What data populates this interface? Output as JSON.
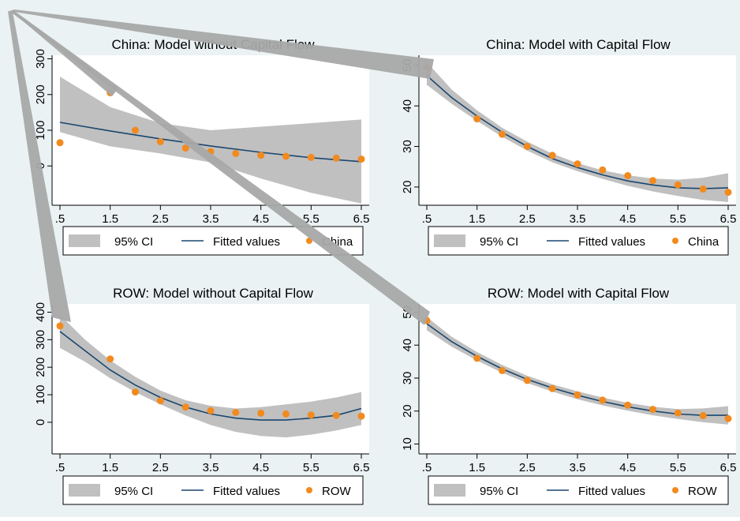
{
  "colors": {
    "page_background": "#ffffff",
    "graph_background": "#eaf2f3",
    "plot_background": "#ffffff",
    "ci_band": "#c0c0c0",
    "fitted_line": "#1a476f",
    "points": "#f28a1e",
    "artifact": "#a8a8a8"
  },
  "legend_labels": {
    "ci": "95% CI",
    "fitted": "Fitted values"
  },
  "chart_data": [
    {
      "type": "scatter",
      "title": "China: Model without Capital Flow",
      "x_ticks": [
        0.5,
        1.5,
        2.5,
        3.5,
        4.5,
        5.5,
        6.5
      ],
      "x_tick_labels": [
        ".5",
        "1.5",
        "2.5",
        "3.5",
        "4.5",
        "5.5",
        "6.5"
      ],
      "xlim": [
        0.5,
        6.5
      ],
      "y_ticks": [
        0,
        100,
        200,
        300
      ],
      "y_tick_labels": [
        "0",
        "100",
        "200",
        "300"
      ],
      "ylim": [
        -110,
        310
      ],
      "grid": false,
      "legend_position": "bottom",
      "series": [
        {
          "name": "China",
          "kind": "points",
          "x": [
            0.5,
            1.5,
            2,
            2.5,
            3,
            3.5,
            4,
            4.5,
            5,
            5.5,
            6,
            6.5
          ],
          "y": [
            65,
            205,
            100,
            68,
            50,
            40,
            35,
            30,
            27,
            24,
            22,
            19
          ]
        },
        {
          "name": "Fitted values",
          "kind": "line",
          "x": [
            0.5,
            1.5,
            2.5,
            3.5,
            4.5,
            5.5,
            6.5
          ],
          "y": [
            122,
            98,
            76,
            56,
            38,
            23,
            12
          ]
        },
        {
          "name": "95% CI",
          "kind": "band",
          "x": [
            0.5,
            1.5,
            2.5,
            3.5,
            4.5,
            5.5,
            6.5
          ],
          "lower": [
            95,
            55,
            35,
            10,
            -35,
            -75,
            -105
          ],
          "upper": [
            250,
            165,
            120,
            100,
            110,
            120,
            130
          ]
        }
      ]
    },
    {
      "type": "scatter",
      "title": "China: Model with Capital Flow",
      "x_ticks": [
        0.5,
        1.5,
        2.5,
        3.5,
        4.5,
        5.5,
        6.5
      ],
      "x_tick_labels": [
        ".5",
        "1.5",
        "2.5",
        "3.5",
        "4.5",
        "5.5",
        "6.5"
      ],
      "xlim": [
        0.5,
        6.5
      ],
      "y_ticks": [
        20,
        30,
        40,
        50
      ],
      "y_tick_labels": [
        "20",
        "30",
        "40",
        "50"
      ],
      "ylim": [
        15.5,
        52.5
      ],
      "grid": false,
      "legend_position": "bottom",
      "series": [
        {
          "name": "China",
          "kind": "points",
          "x": [
            0.5,
            1.5,
            2,
            2.5,
            3,
            3.5,
            4,
            4.5,
            5,
            5.5,
            6,
            6.5
          ],
          "y": [
            49.5,
            36.8,
            33,
            30,
            27.8,
            25.7,
            24.2,
            22.8,
            21.6,
            20.5,
            19.5,
            18.7
          ]
        },
        {
          "name": "Fitted values",
          "kind": "line",
          "x": [
            0.5,
            1,
            1.5,
            2,
            2.5,
            3,
            3.5,
            4,
            4.5,
            5,
            5.5,
            6,
            6.5
          ],
          "y": [
            47.5,
            42,
            37.5,
            33.5,
            30,
            27,
            24.8,
            23,
            21.5,
            20.5,
            19.8,
            19.6,
            19.8
          ]
        },
        {
          "name": "95% CI",
          "kind": "band",
          "x": [
            0.5,
            1,
            1.5,
            2,
            2.5,
            3,
            3.5,
            4,
            4.5,
            5,
            5.5,
            6,
            6.5
          ],
          "lower": [
            45.2,
            40.5,
            36.3,
            32.4,
            29,
            26.1,
            23.9,
            22,
            20.3,
            18.9,
            17.8,
            16.8,
            16.3
          ],
          "upper": [
            50.8,
            44,
            38.9,
            34.6,
            31.2,
            28.2,
            25.9,
            24.1,
            22.9,
            22.1,
            21.8,
            22.3,
            23.4
          ]
        }
      ]
    },
    {
      "type": "scatter",
      "title": "ROW: Model without Capital Flow",
      "x_ticks": [
        0.5,
        1.5,
        2.5,
        3.5,
        4.5,
        5.5,
        6.5
      ],
      "x_tick_labels": [
        ".5",
        "1.5",
        "2.5",
        "3.5",
        "4.5",
        "5.5",
        "6.5"
      ],
      "xlim": [
        0.5,
        6.5
      ],
      "y_ticks": [
        0,
        100,
        200,
        300,
        400
      ],
      "y_tick_labels": [
        "0",
        "100",
        "200",
        "300",
        "400"
      ],
      "ylim": [
        -115,
        430
      ],
      "grid": false,
      "legend_position": "bottom",
      "series": [
        {
          "name": "ROW",
          "kind": "points",
          "x": [
            0.5,
            1.5,
            2,
            2.5,
            3,
            3.5,
            4,
            4.5,
            5,
            5.5,
            6,
            6.5
          ],
          "y": [
            350,
            230,
            110,
            78,
            55,
            42,
            36,
            33,
            30,
            26,
            25,
            22
          ]
        },
        {
          "name": "Fitted values",
          "kind": "line",
          "x": [
            0.5,
            1,
            1.5,
            2,
            2.5,
            3,
            3.5,
            4,
            4.5,
            5,
            5.5,
            6,
            6.5
          ],
          "y": [
            330,
            260,
            190,
            135,
            90,
            55,
            30,
            15,
            8,
            8,
            15,
            25,
            50
          ]
        },
        {
          "name": "95% CI",
          "kind": "band",
          "x": [
            0.5,
            1,
            1.5,
            2,
            2.5,
            3,
            3.5,
            4,
            4.5,
            5,
            5.5,
            6,
            6.5
          ],
          "lower": [
            270,
            220,
            160,
            110,
            65,
            25,
            -10,
            -35,
            -50,
            -55,
            -45,
            -30,
            -10
          ],
          "upper": [
            390,
            300,
            225,
            165,
            115,
            80,
            60,
            50,
            55,
            65,
            75,
            90,
            110
          ]
        }
      ]
    },
    {
      "type": "scatter",
      "title": "ROW: Model with Capital Flow",
      "x_ticks": [
        0.5,
        1.5,
        2.5,
        3.5,
        4.5,
        5.5,
        6.5
      ],
      "x_tick_labels": [
        ".5",
        "1.5",
        "2.5",
        "3.5",
        "4.5",
        "5.5",
        "6.5"
      ],
      "xlim": [
        0.5,
        6.5
      ],
      "y_ticks": [
        10,
        20,
        30,
        40,
        50
      ],
      "y_tick_labels": [
        "10",
        "20",
        "30",
        "40",
        "50"
      ],
      "ylim": [
        7,
        52.5
      ],
      "grid": false,
      "legend_position": "bottom",
      "series": [
        {
          "name": "ROW",
          "kind": "points",
          "x": [
            0.5,
            1.5,
            2,
            2.5,
            3,
            3.5,
            4,
            4.5,
            5,
            5.5,
            6,
            6.5
          ],
          "y": [
            47.5,
            36,
            32.3,
            29.3,
            26.8,
            24.9,
            23.3,
            21.8,
            20.5,
            19.4,
            18.6,
            17.7
          ]
        },
        {
          "name": "Fitted values",
          "kind": "line",
          "x": [
            0.5,
            1,
            1.5,
            2,
            2.5,
            3,
            3.5,
            4,
            4.5,
            5,
            5.5,
            6,
            6.5
          ],
          "y": [
            46.5,
            41,
            36.6,
            32.8,
            29.6,
            27,
            24.8,
            22.9,
            21.3,
            20,
            19.1,
            18.7,
            18.7
          ]
        },
        {
          "name": "95% CI",
          "kind": "band",
          "x": [
            0.5,
            1,
            1.5,
            2,
            2.5,
            3,
            3.5,
            4,
            4.5,
            5,
            5.5,
            6,
            6.5
          ],
          "lower": [
            44.5,
            39.5,
            35.3,
            31.6,
            28.5,
            25.9,
            23.6,
            21.7,
            20.1,
            18.7,
            17.6,
            16.6,
            15.9
          ],
          "upper": [
            48.5,
            42.5,
            37.9,
            34,
            30.7,
            28.1,
            26,
            24.1,
            22.5,
            21.3,
            20.6,
            20.8,
            21.5
          ]
        }
      ]
    }
  ]
}
